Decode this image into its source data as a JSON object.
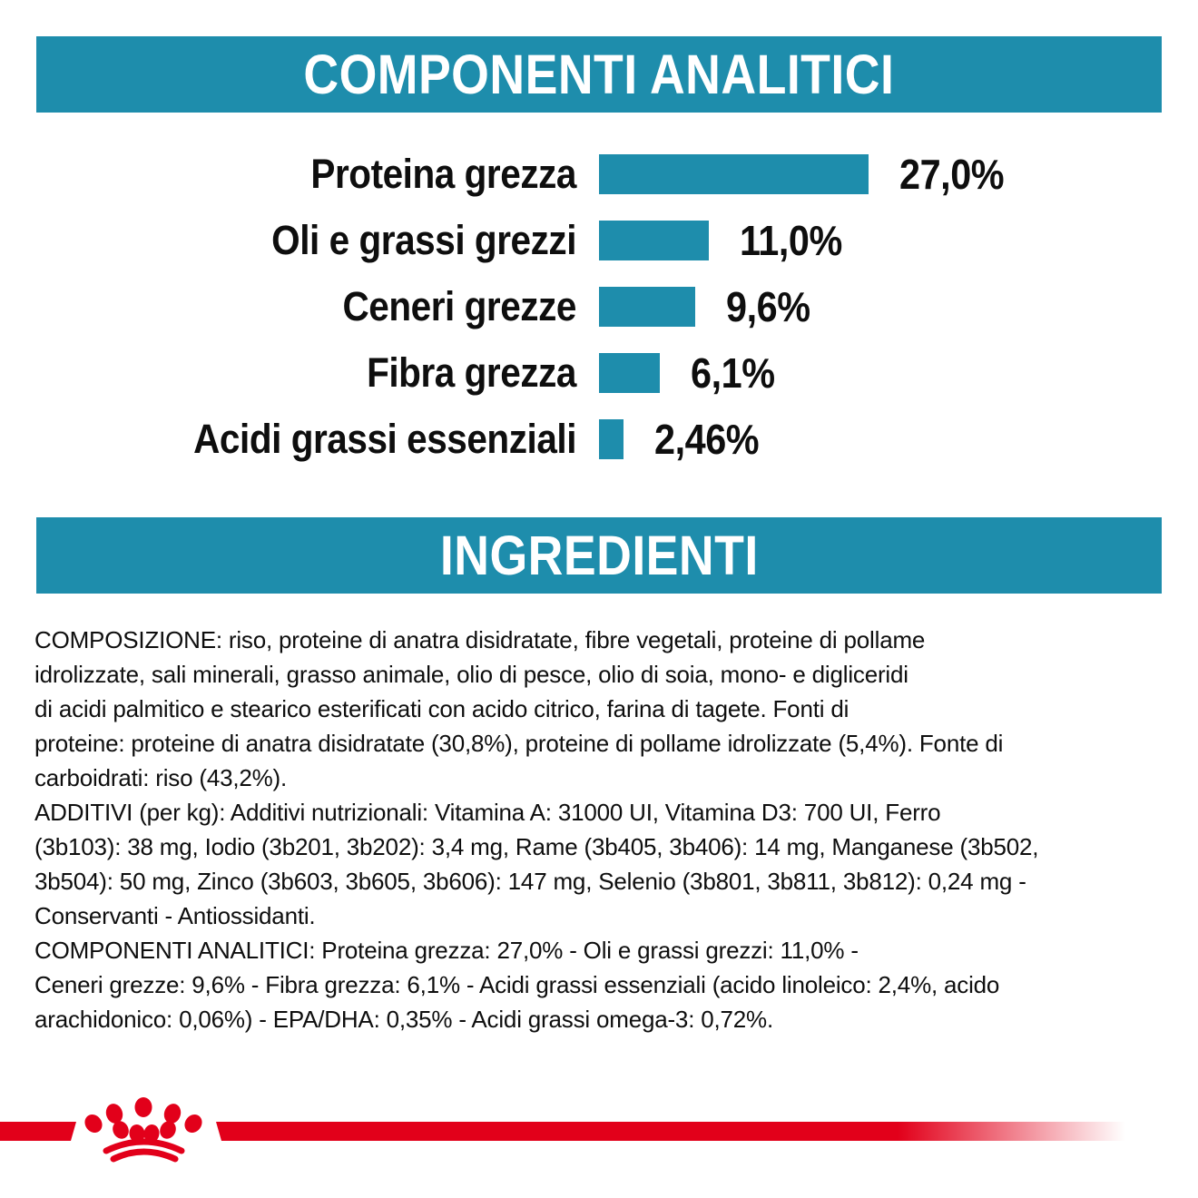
{
  "colors": {
    "teal": "#1E8DAC",
    "red": "#E2001A",
    "text": "#0E0E0E"
  },
  "sections": {
    "analytical": {
      "title": "COMPONENTI ANALITICI"
    },
    "ingredients": {
      "title": "INGREDIENTI"
    }
  },
  "chart_data": {
    "type": "bar",
    "orientation": "horizontal",
    "title": "COMPONENTI ANALITICI",
    "categories": [
      "Proteina grezza",
      "Oli e grassi grezzi",
      "Ceneri grezze",
      "Fibra grezza",
      "Acidi grassi essenziali"
    ],
    "values": [
      27.0,
      11.0,
      9.6,
      6.1,
      2.46
    ],
    "value_labels": [
      "27,0%",
      "11,0%",
      "9,6%",
      "6,1%",
      "2,46%"
    ],
    "unit": "%",
    "xlim": [
      0,
      30
    ],
    "grid": false,
    "bar_color": "#1E8DAC"
  },
  "ingredients_text": {
    "paragraphs": [
      {
        "name": "composizione",
        "lines": [
          "COMPOSIZIONE: riso, proteine di anatra disidratate, fibre vegetali, proteine di pollame",
          "idrolizzate, sali minerali, grasso animale, olio di pesce, olio di soia, mono- e digliceridi",
          "di acidi palmitico e stearico esterificati con acido citrico, farina di tagete. Fonti di",
          "proteine: proteine di anatra disidratate (30,8%), proteine di pollame idrolizzate (5,4%). Fonte di",
          "carboidrati: riso (43,2%)."
        ]
      },
      {
        "name": "additivi",
        "lines": [
          "ADDITIVI (per kg): Additivi nutrizionali: Vitamina A: 31000 UI, Vitamina D3: 700 UI, Ferro",
          "(3b103): 38 mg, Iodio (3b201, 3b202): 3,4 mg, Rame (3b405, 3b406): 14 mg, Manganese (3b502,",
          "3b504): 50 mg, Zinco (3b603, 3b605, 3b606): 147 mg, Selenio (3b801, 3b811, 3b812): 0,24 mg -",
          "Conservanti - Antiossidanti."
        ]
      },
      {
        "name": "componenti-analitici",
        "lines": [
          "COMPONENTI ANALITICI: Proteina grezza: 27,0% - Oli e grassi grezzi: 11,0% -",
          "Ceneri grezze: 9,6% - Fibra grezza: 6,1% - Acidi grassi essenziali (acido linoleico: 2,4%, acido",
          "arachidonico: 0,06%) - EPA/DHA: 0,35% - Acidi grassi omega-3: 0,72%."
        ]
      }
    ]
  },
  "footer": {
    "logo_icon": "royal-canin-crown-icon"
  }
}
